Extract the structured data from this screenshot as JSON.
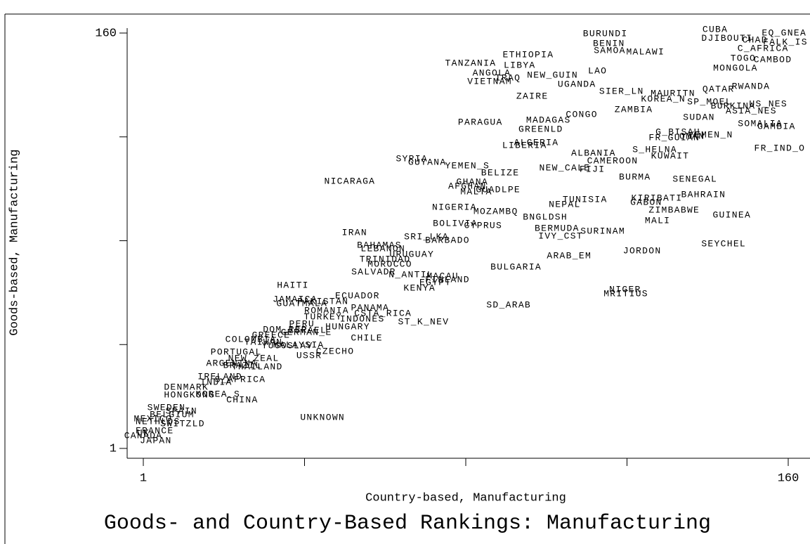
{
  "chart_data": {
    "type": "scatter",
    "title": "Goods- and Country-Based Rankings: Manufacturing",
    "xlabel": "Country-based, Manufacturing",
    "ylabel": "Goods-based, Manufacturing",
    "xlim": [
      1,
      160
    ],
    "ylim": [
      1,
      160
    ],
    "xticks": [
      1,
      160
    ],
    "yticks": [
      1,
      160
    ],
    "xminor": [
      40.75,
      80.5,
      120.25
    ],
    "yminor": [
      40.75,
      80.5,
      120.25
    ],
    "color": "#000000",
    "labels": [
      "CUBA",
      "EQ_GNEA",
      "DJIBOUTI",
      "CHAD",
      "FALK_IS",
      "C_AFRICA",
      "TOGO",
      "CAMBOD",
      "MONGOLA",
      "BURUNDI",
      "BENIN",
      "SAMOA",
      "MALAWI",
      "ETHIOPIA",
      "TANZANIA",
      "LIBYA",
      "ANGOLA",
      "IRAQ",
      "VIETNAM",
      "NEW_GUIN",
      "LAO",
      "UGANDA",
      "QATAR",
      "RWANDA",
      "SIER_LN",
      "MAURITN",
      "KOREA_N",
      "SP_MOEL",
      "ZAIRE",
      "BURKINA",
      "US_NES",
      "ASIA_NES",
      "ZAMBIA",
      "SUDAN",
      "CONGO",
      "MADAGAS",
      "PARAGUA",
      "GREENLD",
      "SOMALIA",
      "GAMBIA",
      "G_BISAU",
      "FR_GUIAN",
      "OMAN",
      "YEMEN_N",
      "ALGERIA",
      "LIBERIA",
      "FR_IND_O",
      "ALBANIA",
      "S_HELNA",
      "KUWAIT",
      "CAMEROON",
      "SYRIA",
      "GUYANA",
      "YEMEN_S",
      "NEW_CALE",
      "FIJI",
      "BELIZE",
      "BURMA",
      "SENEGAL",
      "NICARAGA",
      "GHANA",
      "AFGHAN",
      "MALTA",
      "GUADLPE",
      "KIRIBATI",
      "BAHRAIN",
      "TUNISIA",
      "NEPAL",
      "GABON",
      "NIGERIA",
      "ZIMBABWE",
      "MOZAMBQ",
      "BNGLDSH",
      "GUINEA",
      "MALI",
      "BOLIVIA",
      "CYPRUS",
      "BERMUDA",
      "SURINAM",
      "IVY_CST",
      "IRAN",
      "SRI_LKA",
      "BARBADO",
      "SEYCHEL",
      "JORDON",
      "BAHAMAS",
      "LEBANON",
      "URUGUAY",
      "TRINIDAD",
      "ARAB_EM",
      "MOROCCO",
      "BULGARIA",
      "SALVADR",
      "N_ANTIL",
      "MACAU",
      "FINLAND",
      "EGYPT",
      "KENYA",
      "NIGER",
      "MRITIUS",
      "HAITI",
      "ECUADOR",
      "JAMAICA",
      "GUATMALA",
      "PAKISTAN",
      "SD_ARAB",
      "ROMANIA",
      "PANAMA",
      "CSTA_RICA",
      "TURKEY",
      "INDONES",
      "ST_K_NEV",
      "PERU",
      "HUNGARY",
      "DOM_REP",
      "GERMAN_E",
      "ISRAEL",
      "GREECE",
      "CHILE",
      "COLOMBIA",
      "TAIWAN",
      "YUGOSLAV",
      "MALAYSIA",
      "CZECHO",
      "PORTUGAL",
      "USSR",
      "NEW_ZEAL",
      "ARGENTNA",
      "BRAZIL",
      "THAILAND",
      "S_AFRICA",
      "IRELAND",
      "INDIA",
      "DENMARK",
      "HONGKONG",
      "KOREA_S",
      "CHINA",
      "SWEDEN",
      "SPAIN",
      "BELGIUM",
      "MEXICO",
      "NETHLDS",
      "SWITZLD",
      "FRANCE",
      "UK",
      "CANADA",
      "JAPAN",
      "UNKNOWN"
    ],
    "x": [
      142.0,
      159.0,
      144.9,
      151.8,
      159.3,
      153.8,
      148.9,
      156.2,
      147.0,
      114.9,
      115.8,
      116.0,
      124.8,
      95.9,
      81.7,
      93.8,
      86.9,
      90.9,
      86.4,
      101.9,
      113.0,
      107.9,
      142.8,
      150.8,
      118.9,
      131.6,
      129.2,
      140.6,
      96.9,
      146.4,
      155.1,
      150.9,
      121.9,
      138.0,
      109.1,
      100.9,
      84.1,
      99.0,
      153.1,
      157.1,
      132.8,
      131.9,
      136.3,
      140.9,
      97.9,
      95.0,
      157.9,
      112.0,
      127.1,
      130.9,
      116.7,
      67.2,
      71.0,
      80.9,
      104.9,
      111.7,
      89.0,
      122.2,
      137.0,
      51.9,
      82.1,
      80.9,
      83.1,
      88.5,
      127.6,
      139.1,
      109.9,
      104.9,
      125.0,
      77.7,
      131.9,
      87.9,
      100.1,
      146.1,
      127.8,
      77.9,
      84.8,
      103.0,
      114.3,
      103.9,
      53.1,
      70.8,
      76.0,
      144.1,
      124.0,
      59.2,
      60.1,
      67.2,
      60.6,
      106.0,
      61.8,
      92.9,
      57.8,
      67.0,
      74.8,
      76.0,
      73.0,
      69.1,
      119.8,
      120.0,
      37.9,
      53.8,
      38.4,
      40.1,
      45.3,
      91.1,
      46.2,
      56.9,
      60.1,
      45.3,
      55.0,
      70.1,
      40.1,
      51.4,
      36.0,
      41.2,
      41.5,
      32.5,
      56.1,
      27.5,
      30.6,
      36.5,
      39.3,
      48.3,
      23.9,
      41.9,
      28.2,
      22.8,
      25.4,
      29.1,
      24.9,
      19.9,
      19.0,
      11.6,
      12.4,
      19.4,
      25.4,
      6.7,
      10.4,
      8.1,
      3.4,
      4.6,
      10.7,
      3.8,
      1,
      1,
      4.1,
      45.2
    ],
    "values": [
      161.3,
      160.0,
      157.9,
      157.3,
      156.5,
      154.1,
      150.3,
      149.8,
      146.5,
      159.7,
      156.0,
      153.3,
      152.7,
      151.7,
      148.4,
      147.6,
      144.7,
      142.8,
      141.4,
      143.9,
      145.5,
      140.4,
      138.5,
      139.6,
      137.7,
      136.9,
      134.7,
      133.6,
      135.8,
      132.0,
      132.8,
      130.1,
      130.7,
      127.7,
      128.8,
      126.6,
      125.8,
      123.1,
      125.3,
      124.2,
      122.1,
      119.9,
      120.4,
      121.0,
      118.0,
      116.9,
      115.9,
      114.0,
      115.3,
      112.9,
      111.0,
      111.8,
      110.5,
      109.2,
      108.3,
      107.8,
      106.5,
      104.8,
      104.0,
      103.2,
      103.0,
      101.4,
      99.2,
      100.0,
      96.8,
      98.1,
      96.2,
      94.4,
      95.2,
      93.3,
      92.2,
      91.7,
      89.5,
      90.3,
      88.2,
      87.1,
      86.3,
      85.2,
      84.1,
      82.2,
      83.6,
      82.0,
      80.6,
      79.3,
      76.6,
      78.8,
      77.4,
      75.3,
      73.4,
      74.7,
      71.5,
      70.4,
      68.5,
      67.5,
      66.9,
      65.6,
      64.5,
      62.3,
      61.8,
      60.2,
      63.4,
      59.4,
      58.0,
      56.4,
      57.2,
      55.9,
      53.7,
      54.8,
      52.7,
      51.3,
      50.5,
      49.4,
      48.6,
      47.5,
      46.5,
      45.4,
      46.2,
      44.3,
      43.2,
      42.7,
      41.6,
      40.3,
      40.5,
      38.1,
      37.9,
      36.5,
      35.4,
      33.6,
      32.7,
      32.2,
      27.4,
      28.4,
      26.3,
      24.4,
      21.4,
      21.7,
      19.6,
      16.6,
      15.3,
      13.9,
      12.3,
      11.2,
      10.4,
      7.7,
      6.9,
      5.8,
      4.0,
      12.8
    ]
  }
}
